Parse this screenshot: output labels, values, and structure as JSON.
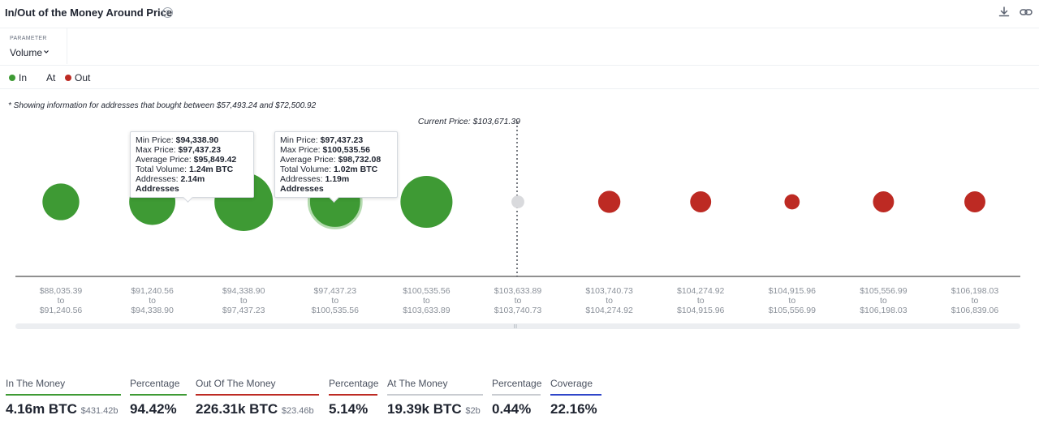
{
  "header": {
    "title": "In/Out of the Money Around Price"
  },
  "parameter": {
    "label": "PARAMETER",
    "value": "Volume"
  },
  "legend": [
    {
      "label": "In",
      "color": "#3e9a34"
    },
    {
      "label": "At",
      "color": ""
    },
    {
      "label": "Out",
      "color": "#bd2a23"
    }
  ],
  "note": "* Showing information for addresses that bought between $57,493.24 and $72,500.92",
  "chart_data": {
    "type": "bubble",
    "current_price_label": "Current Price: $103,671.39",
    "colors": {
      "in": "#3e9a34",
      "at": "#d9dadd",
      "out": "#bd2a23"
    },
    "buckets": [
      {
        "from": "$88,035.39",
        "to": "$91,240.56",
        "status": "in",
        "size": 0.63
      },
      {
        "from": "$91,240.56",
        "to": "$94,338.90",
        "status": "in",
        "size": 0.79
      },
      {
        "from": "$94,338.90",
        "to": "$97,437.23",
        "status": "in",
        "size": 1.0
      },
      {
        "from": "$97,437.23",
        "to": "$100,535.56",
        "status": "in",
        "size": 0.9
      },
      {
        "from": "$100,535.56",
        "to": "$103,633.89",
        "status": "in",
        "size": 0.89
      },
      {
        "from": "$103,633.89",
        "to": "$103,740.73",
        "status": "at",
        "size": 0.22
      },
      {
        "from": "$103,740.73",
        "to": "$104,274.92",
        "status": "out",
        "size": 0.38
      },
      {
        "from": "$104,274.92",
        "to": "$104,915.96",
        "status": "out",
        "size": 0.36
      },
      {
        "from": "$104,915.96",
        "to": "$105,556.99",
        "status": "out",
        "size": 0.26
      },
      {
        "from": "$105,556.99",
        "to": "$106,198.03",
        "status": "out",
        "size": 0.36
      },
      {
        "from": "$106,198.03",
        "to": "$106,839.06",
        "status": "out",
        "size": 0.36
      }
    ],
    "range_connector": "to",
    "tooltips": [
      {
        "min_price_label": "Min Price:",
        "min_price": "$94,338.90",
        "max_price_label": "Max Price:",
        "max_price": "$97,437.23",
        "avg_price_label": "Average Price:",
        "avg_price": "$95,849.42",
        "volume_label": "Total Volume:",
        "volume": "1.24m BTC",
        "addresses_label": "Addresses:",
        "addresses": "2.14m Addresses"
      },
      {
        "min_price_label": "Min Price:",
        "min_price": "$97,437.23",
        "max_price_label": "Max Price:",
        "max_price": "$100,535.56",
        "avg_price_label": "Average Price:",
        "avg_price": "$98,732.08",
        "volume_label": "Total Volume:",
        "volume": "1.02m BTC",
        "addresses_label": "Addresses:",
        "addresses": "1.19m Addresses"
      }
    ]
  },
  "stats": [
    {
      "label": "In The Money",
      "value": "4.16m BTC",
      "sub": "$431.42b",
      "color": "#3e9a34"
    },
    {
      "label": "Percentage",
      "value": "94.42%",
      "sub": "",
      "color": "#3e9a34"
    },
    {
      "label": "Out Of The Money",
      "value": "226.31k BTC",
      "sub": "$23.46b",
      "color": "#bd2a23"
    },
    {
      "label": "Percentage",
      "value": "5.14%",
      "sub": "",
      "color": "#bd2a23"
    },
    {
      "label": "At The Money",
      "value": "19.39k BTC",
      "sub": "$2b",
      "color": "#c9ccd1"
    },
    {
      "label": "Percentage",
      "value": "0.44%",
      "sub": "",
      "color": "#c9ccd1"
    },
    {
      "label": "Coverage",
      "value": "22.16%",
      "sub": "",
      "color": "#2f46c9"
    }
  ]
}
